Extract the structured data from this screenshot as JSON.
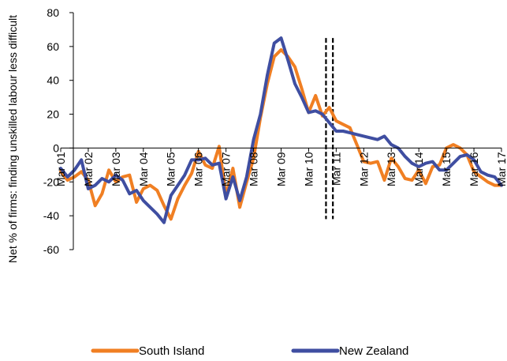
{
  "chart_data": {
    "type": "line",
    "ylabel": "Net % of firms: finding unskilled labour less difficult",
    "ylim": [
      -60,
      80
    ],
    "yticks": [
      -60,
      -40,
      -20,
      0,
      20,
      40,
      60,
      80
    ],
    "xlim": [
      2001.0,
      2017.0
    ],
    "xticks": [
      {
        "label": "Mar 01",
        "x": 2001.0
      },
      {
        "label": "Mar 02",
        "x": 2002.0
      },
      {
        "label": "Mar 03",
        "x": 2003.0
      },
      {
        "label": "Mar 04",
        "x": 2004.0
      },
      {
        "label": "Mar 05",
        "x": 2005.0
      },
      {
        "label": "Mar 06",
        "x": 2006.0
      },
      {
        "label": "Mar 07",
        "x": 2007.0
      },
      {
        "label": "Mar 08",
        "x": 2008.0
      },
      {
        "label": "Mar 09",
        "x": 2009.0
      },
      {
        "label": "Mar 10",
        "x": 2010.0
      },
      {
        "label": "Mar 11",
        "x": 2011.0
      },
      {
        "label": "Mar 12",
        "x": 2012.0
      },
      {
        "label": "Mar 13",
        "x": 2013.0
      },
      {
        "label": "Mar 14",
        "x": 2014.0
      },
      {
        "label": "Mar 15",
        "x": 2015.0
      },
      {
        "label": "Mar 16",
        "x": 2016.0
      },
      {
        "label": "Mar 17",
        "x": 2017.0
      }
    ],
    "vlines": [
      2010.63,
      2010.88
    ],
    "grid": false,
    "legend": "bottom",
    "series": [
      {
        "name": "South Island",
        "color": "#f07f23",
        "x": [
          2001.0,
          2001.25,
          2001.5,
          2001.75,
          2002.0,
          2002.25,
          2002.5,
          2002.75,
          2003.0,
          2003.25,
          2003.5,
          2003.75,
          2004.0,
          2004.25,
          2004.5,
          2004.75,
          2005.0,
          2005.25,
          2005.5,
          2005.75,
          2006.0,
          2006.25,
          2006.5,
          2006.75,
          2007.0,
          2007.25,
          2007.5,
          2007.75,
          2008.0,
          2008.25,
          2008.5,
          2008.75,
          2009.0,
          2009.25,
          2009.5,
          2009.75,
          2010.0,
          2010.25,
          2010.5,
          2010.75,
          2011.0,
          2011.25,
          2011.5,
          2011.75,
          2012.0,
          2012.25,
          2012.5,
          2012.75,
          2013.0,
          2013.25,
          2013.5,
          2013.75,
          2014.0,
          2014.25,
          2014.5,
          2014.75,
          2015.0,
          2015.25,
          2015.5,
          2015.75,
          2016.0,
          2016.25,
          2016.5,
          2016.75,
          2017.0
        ],
        "values": [
          -14,
          -19,
          -17,
          -14,
          -19,
          -34,
          -27,
          -13,
          -20,
          -17,
          -16,
          -32,
          -24,
          -22,
          -25,
          -34,
          -42,
          -30,
          -22,
          -15,
          -2,
          -10,
          -12,
          1,
          -28,
          -12,
          -35,
          -20,
          -6,
          18,
          38,
          54,
          58,
          54,
          48,
          35,
          21,
          31,
          19,
          24,
          16,
          14,
          12,
          2,
          -8,
          -9,
          -8,
          -19,
          -6,
          -11,
          -18,
          -19,
          -13,
          -21,
          -11,
          -10,
          0,
          2,
          0,
          -4,
          -14,
          -17,
          -20,
          -22,
          -22
        ]
      },
      {
        "name": "New Zealand",
        "color": "#3f4ea1",
        "x": [
          2001.0,
          2001.25,
          2001.5,
          2001.75,
          2002.0,
          2002.25,
          2002.5,
          2002.75,
          2003.0,
          2003.25,
          2003.5,
          2003.75,
          2004.0,
          2004.25,
          2004.5,
          2004.75,
          2005.0,
          2005.25,
          2005.5,
          2005.75,
          2006.0,
          2006.25,
          2006.5,
          2006.75,
          2007.0,
          2007.25,
          2007.5,
          2007.75,
          2008.0,
          2008.25,
          2008.5,
          2008.75,
          2009.0,
          2009.25,
          2009.5,
          2009.75,
          2010.0,
          2010.25,
          2010.5,
          2010.75,
          2011.0,
          2011.25,
          2011.5,
          2011.75,
          2012.0,
          2012.25,
          2012.5,
          2012.75,
          2013.0,
          2013.25,
          2013.5,
          2013.75,
          2014.0,
          2014.25,
          2014.5,
          2014.75,
          2015.0,
          2015.25,
          2015.5,
          2015.75,
          2016.0,
          2016.25,
          2016.5,
          2016.75,
          2017.0
        ],
        "values": [
          -12,
          -17,
          -13,
          -7,
          -24,
          -22,
          -18,
          -20,
          -16,
          -19,
          -27,
          -25,
          -31,
          -35,
          -39,
          -44,
          -28,
          -22,
          -16,
          -7,
          -7,
          -6,
          -10,
          -9,
          -30,
          -17,
          -31,
          -17,
          5,
          20,
          43,
          62,
          65,
          52,
          38,
          30,
          21,
          22,
          20,
          15,
          10,
          10,
          9,
          8,
          7,
          6,
          5,
          7,
          2,
          0,
          -5,
          -9,
          -11,
          -9,
          -8,
          -13,
          -13,
          -9,
          -5,
          -4,
          -7,
          -14,
          -16,
          -17,
          -22
        ]
      }
    ]
  }
}
